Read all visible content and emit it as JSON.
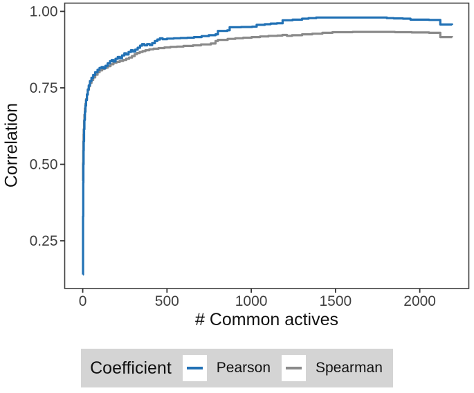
{
  "figure": {
    "xlabel": "# Common actives",
    "ylabel": "Correlation"
  },
  "legend": {
    "title": "Coefficient"
  },
  "chart_data": {
    "type": "line",
    "step": true,
    "title": "",
    "xlabel": "# Common actives",
    "ylabel": "Correlation",
    "grid": false,
    "legend_position": "bottom",
    "legend_title": "Coefficient",
    "xlim": [
      -107,
      2291
    ],
    "ylim": [
      0.094,
      1.027
    ],
    "xticks": {
      "values": [
        0,
        500,
        1000,
        1500,
        2000
      ],
      "labels": [
        "0",
        "500",
        "1000",
        "1500",
        "2000"
      ]
    },
    "yticks": {
      "values": [
        0.25,
        0.5,
        0.75,
        1.0
      ],
      "labels": [
        "0.25",
        "0.50",
        "0.75",
        "1.00"
      ]
    },
    "series": [
      {
        "name": "Spearman",
        "color": "#8A8A8A",
        "points": [
          [
            1,
            0.445
          ],
          [
            2,
            0.505
          ],
          [
            3,
            0.545
          ],
          [
            4,
            0.575
          ],
          [
            5,
            0.598
          ],
          [
            6,
            0.615
          ],
          [
            8,
            0.642
          ],
          [
            10,
            0.662
          ],
          [
            13,
            0.683
          ],
          [
            16,
            0.698
          ],
          [
            20,
            0.713
          ],
          [
            25,
            0.729
          ],
          [
            30,
            0.743
          ],
          [
            36,
            0.755
          ],
          [
            43,
            0.766
          ],
          [
            52,
            0.776
          ],
          [
            62,
            0.784
          ],
          [
            74,
            0.793
          ],
          [
            88,
            0.801
          ],
          [
            100,
            0.807
          ],
          [
            115,
            0.812
          ],
          [
            130,
            0.816
          ],
          [
            148,
            0.821
          ],
          [
            165,
            0.827
          ],
          [
            182,
            0.832
          ],
          [
            200,
            0.835
          ],
          [
            220,
            0.838
          ],
          [
            240,
            0.841
          ],
          [
            258,
            0.845
          ],
          [
            275,
            0.849
          ],
          [
            292,
            0.854
          ],
          [
            308,
            0.86
          ],
          [
            322,
            0.864
          ],
          [
            338,
            0.867
          ],
          [
            355,
            0.87
          ],
          [
            372,
            0.873
          ],
          [
            395,
            0.876
          ],
          [
            420,
            0.878
          ],
          [
            450,
            0.88
          ],
          [
            485,
            0.882
          ],
          [
            520,
            0.884
          ],
          [
            558,
            0.885
          ],
          [
            598,
            0.887
          ],
          [
            655,
            0.889
          ],
          [
            702,
            0.892
          ],
          [
            760,
            0.895
          ],
          [
            788,
            0.903
          ],
          [
            802,
            0.907
          ],
          [
            860,
            0.91
          ],
          [
            905,
            0.912
          ],
          [
            952,
            0.914
          ],
          [
            1002,
            0.916
          ],
          [
            1052,
            0.918
          ],
          [
            1102,
            0.92
          ],
          [
            1155,
            0.921
          ],
          [
            1185,
            0.923
          ],
          [
            1212,
            0.92
          ],
          [
            1242,
            0.922
          ],
          [
            1302,
            0.925
          ],
          [
            1362,
            0.927
          ],
          [
            1422,
            0.93
          ],
          [
            1482,
            0.932
          ],
          [
            1602,
            0.933
          ],
          [
            1752,
            0.933
          ],
          [
            1852,
            0.932
          ],
          [
            1952,
            0.931
          ],
          [
            2055,
            0.93
          ],
          [
            2122,
            0.916
          ],
          [
            2192,
            0.915
          ]
        ]
      },
      {
        "name": "Pearson",
        "color": "#2171B5",
        "points": [
          [
            1,
            0.14
          ],
          [
            2,
            0.33
          ],
          [
            3,
            0.44
          ],
          [
            4,
            0.5
          ],
          [
            5,
            0.545
          ],
          [
            6,
            0.575
          ],
          [
            8,
            0.615
          ],
          [
            10,
            0.645
          ],
          [
            13,
            0.672
          ],
          [
            16,
            0.692
          ],
          [
            20,
            0.71
          ],
          [
            25,
            0.728
          ],
          [
            30,
            0.745
          ],
          [
            36,
            0.758
          ],
          [
            43,
            0.772
          ],
          [
            52,
            0.783
          ],
          [
            62,
            0.792
          ],
          [
            74,
            0.801
          ],
          [
            88,
            0.809
          ],
          [
            100,
            0.815
          ],
          [
            112,
            0.818
          ],
          [
            122,
            0.814
          ],
          [
            135,
            0.822
          ],
          [
            148,
            0.83
          ],
          [
            162,
            0.837
          ],
          [
            172,
            0.841
          ],
          [
            182,
            0.836
          ],
          [
            195,
            0.845
          ],
          [
            208,
            0.851
          ],
          [
            220,
            0.847
          ],
          [
            233,
            0.856
          ],
          [
            247,
            0.863
          ],
          [
            258,
            0.859
          ],
          [
            272,
            0.867
          ],
          [
            286,
            0.873
          ],
          [
            298,
            0.869
          ],
          [
            312,
            0.875
          ],
          [
            326,
            0.881
          ],
          [
            340,
            0.888
          ],
          [
            352,
            0.893
          ],
          [
            366,
            0.889
          ],
          [
            382,
            0.893
          ],
          [
            398,
            0.89
          ],
          [
            412,
            0.896
          ],
          [
            428,
            0.903
          ],
          [
            443,
            0.908
          ],
          [
            458,
            0.912
          ],
          [
            474,
            0.909
          ],
          [
            500,
            0.911
          ],
          [
            540,
            0.912
          ],
          [
            580,
            0.913
          ],
          [
            620,
            0.914
          ],
          [
            660,
            0.916
          ],
          [
            705,
            0.919
          ],
          [
            748,
            0.922
          ],
          [
            788,
            0.925
          ],
          [
            802,
            0.936
          ],
          [
            858,
            0.938
          ],
          [
            872,
            0.948
          ],
          [
            940,
            0.949
          ],
          [
            1005,
            0.95
          ],
          [
            1032,
            0.956
          ],
          [
            1080,
            0.958
          ],
          [
            1115,
            0.96
          ],
          [
            1152,
            0.961
          ],
          [
            1186,
            0.971
          ],
          [
            1245,
            0.973
          ],
          [
            1302,
            0.976
          ],
          [
            1340,
            0.978
          ],
          [
            1385,
            0.98
          ],
          [
            1755,
            0.98
          ],
          [
            1805,
            0.978
          ],
          [
            1845,
            0.977
          ],
          [
            1900,
            0.976
          ],
          [
            1945,
            0.973
          ],
          [
            2055,
            0.972
          ],
          [
            2122,
            0.957
          ],
          [
            2192,
            0.956
          ]
        ]
      }
    ]
  },
  "style": {
    "pearson_color": "#2171B5",
    "spearman_color": "#8A8A8A",
    "legend_bg": "#D4D4D4",
    "panel_border": "#3F3F3F",
    "tick_label_color": "#404040"
  }
}
